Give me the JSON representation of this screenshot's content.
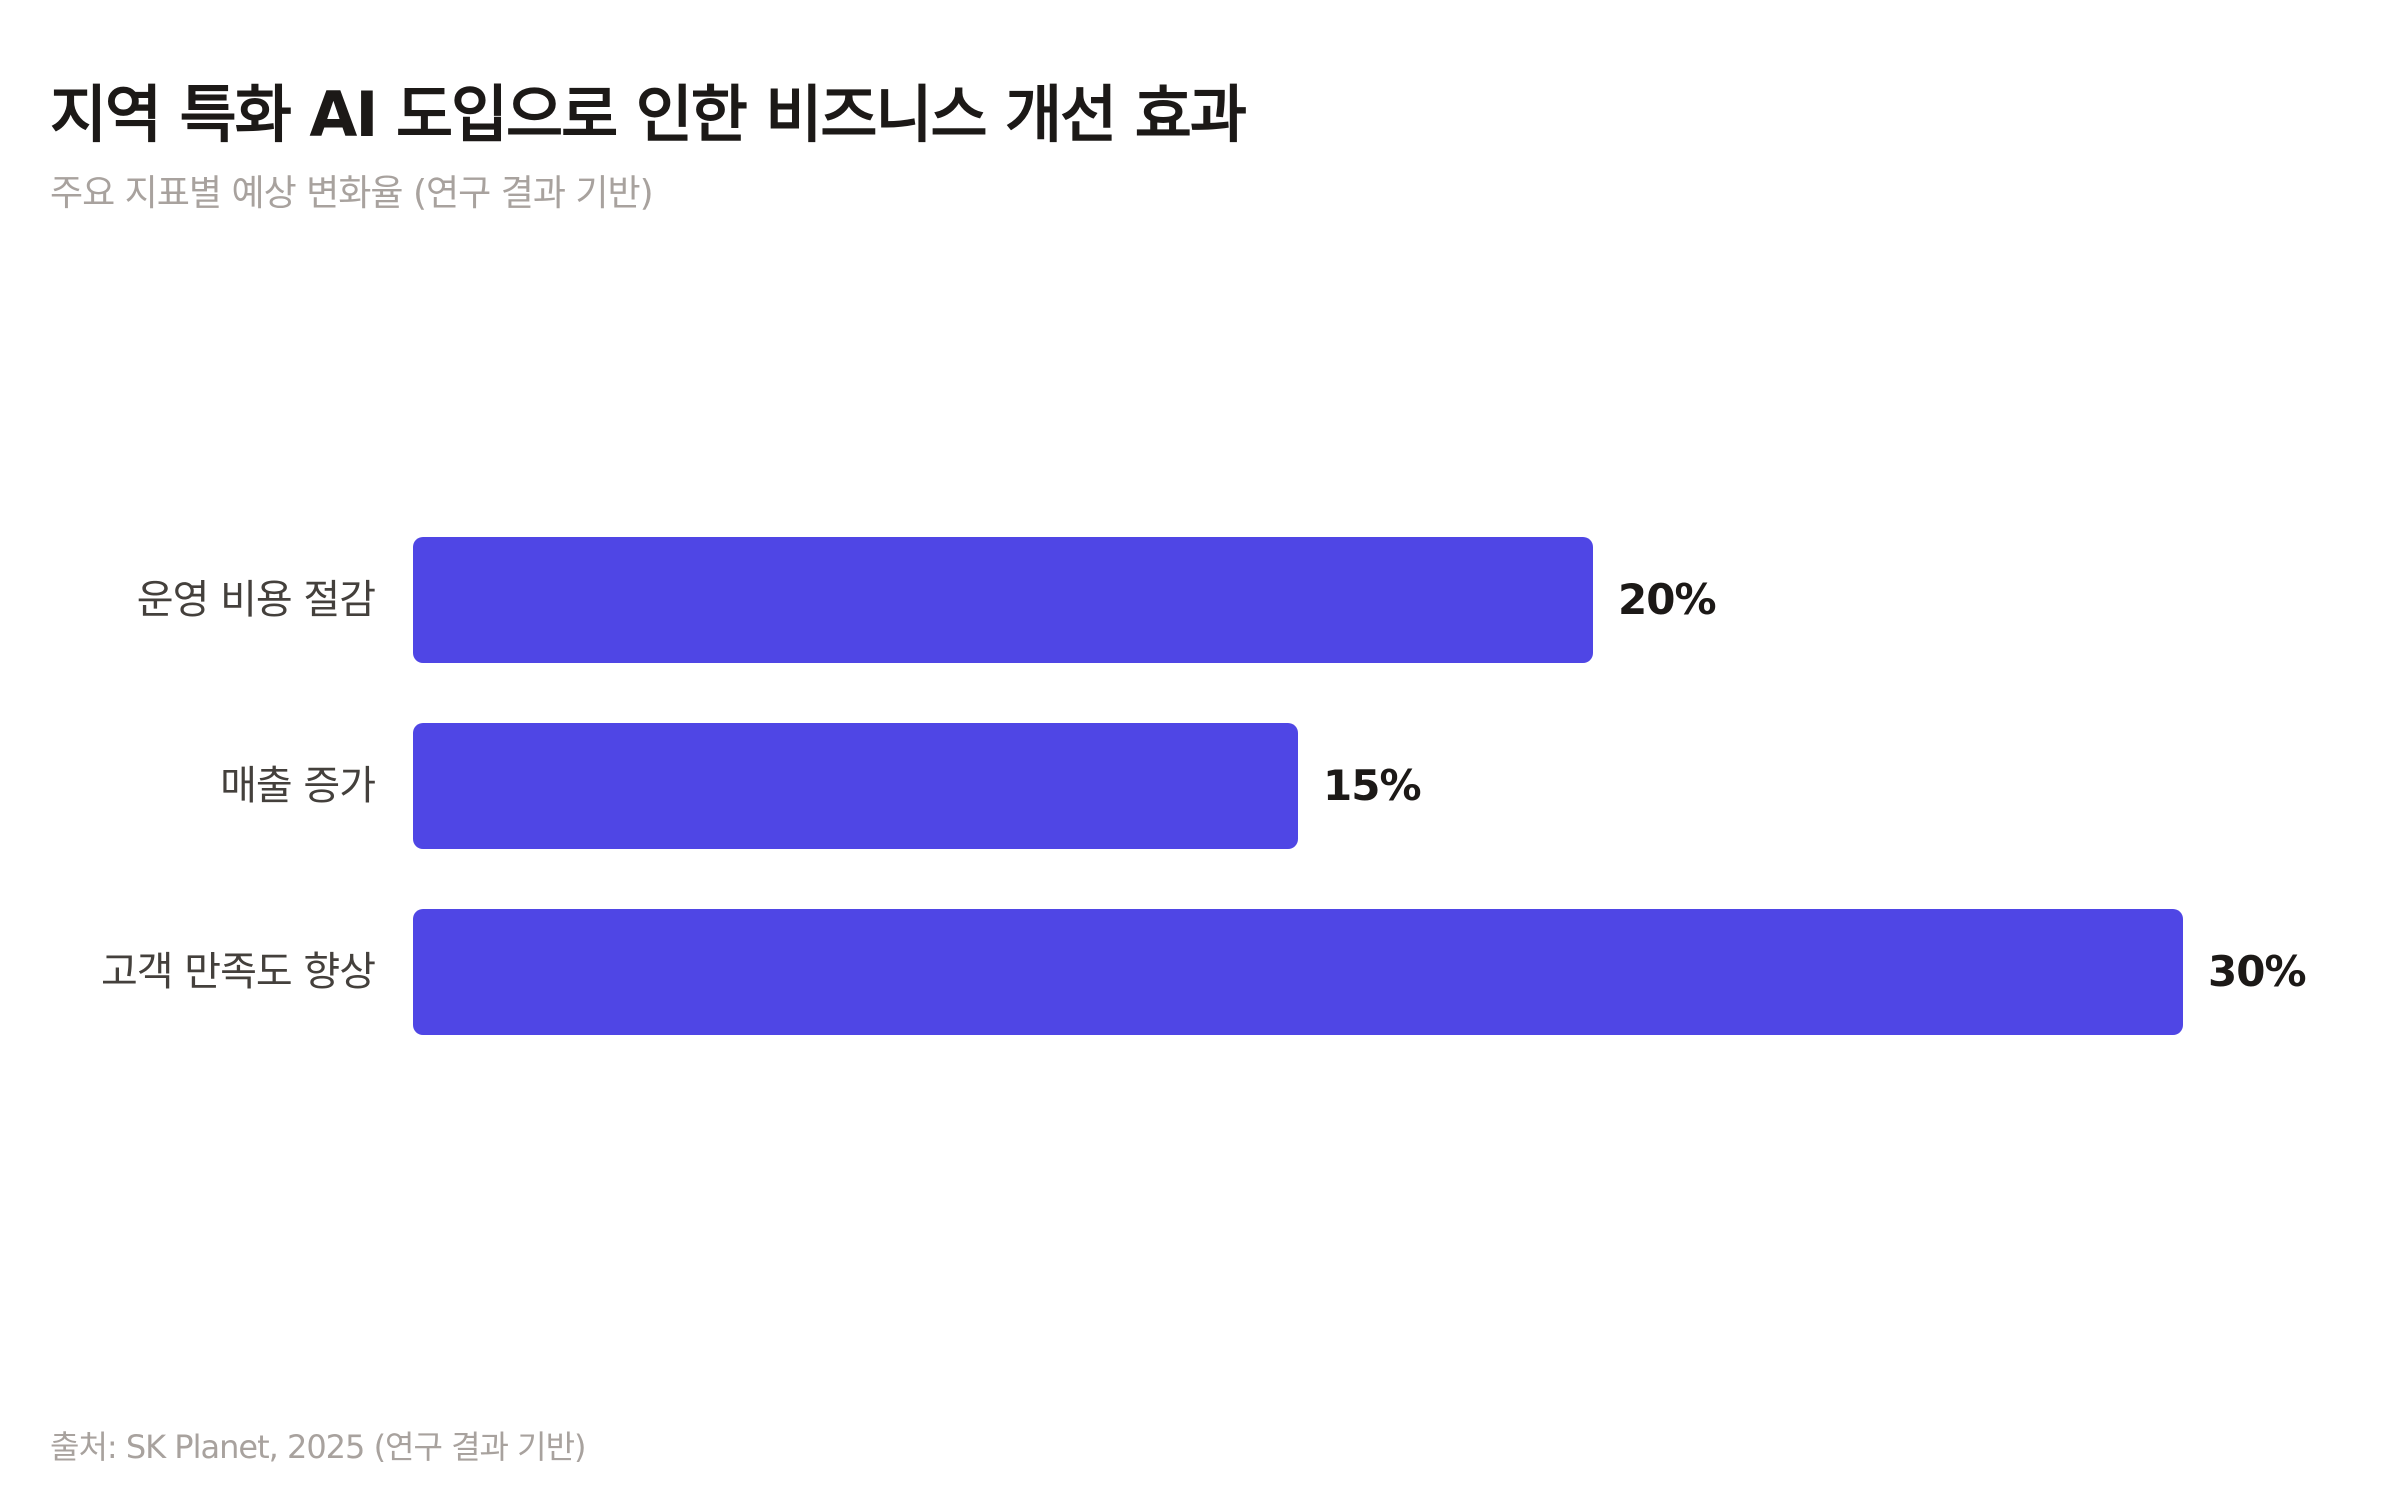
{
  "header": {
    "title": "지역 특화 AI 도입으로 인한 비즈니스 개선 효과",
    "subtitle": "주요 지표별 예상 변화율 (연구 결과 기반)"
  },
  "footer": {
    "source": "출처: SK Planet, 2025 (연구 결과 기반)"
  },
  "colors": {
    "bar": "#4f46e5",
    "title": "#1c1917",
    "muted": "#a8a29e",
    "label": "#44403c"
  },
  "chart_data": {
    "type": "bar",
    "orientation": "horizontal",
    "title": "지역 특화 AI 도입으로 인한 비즈니스 개선 효과",
    "subtitle": "주요 지표별 예상 변화율 (연구 결과 기반)",
    "categories": [
      "운영 비용 절감",
      "매출 증가",
      "고객 만족도 향상"
    ],
    "values": [
      20,
      15,
      30
    ],
    "value_labels": [
      "20%",
      "15%",
      "30%"
    ],
    "unit": "%",
    "xlabel": "",
    "ylabel": "",
    "xlim": [
      0,
      30
    ],
    "grid": false,
    "legend": null,
    "annotations": [
      "출처: SK Planet, 2025 (연구 결과 기반)"
    ]
  }
}
